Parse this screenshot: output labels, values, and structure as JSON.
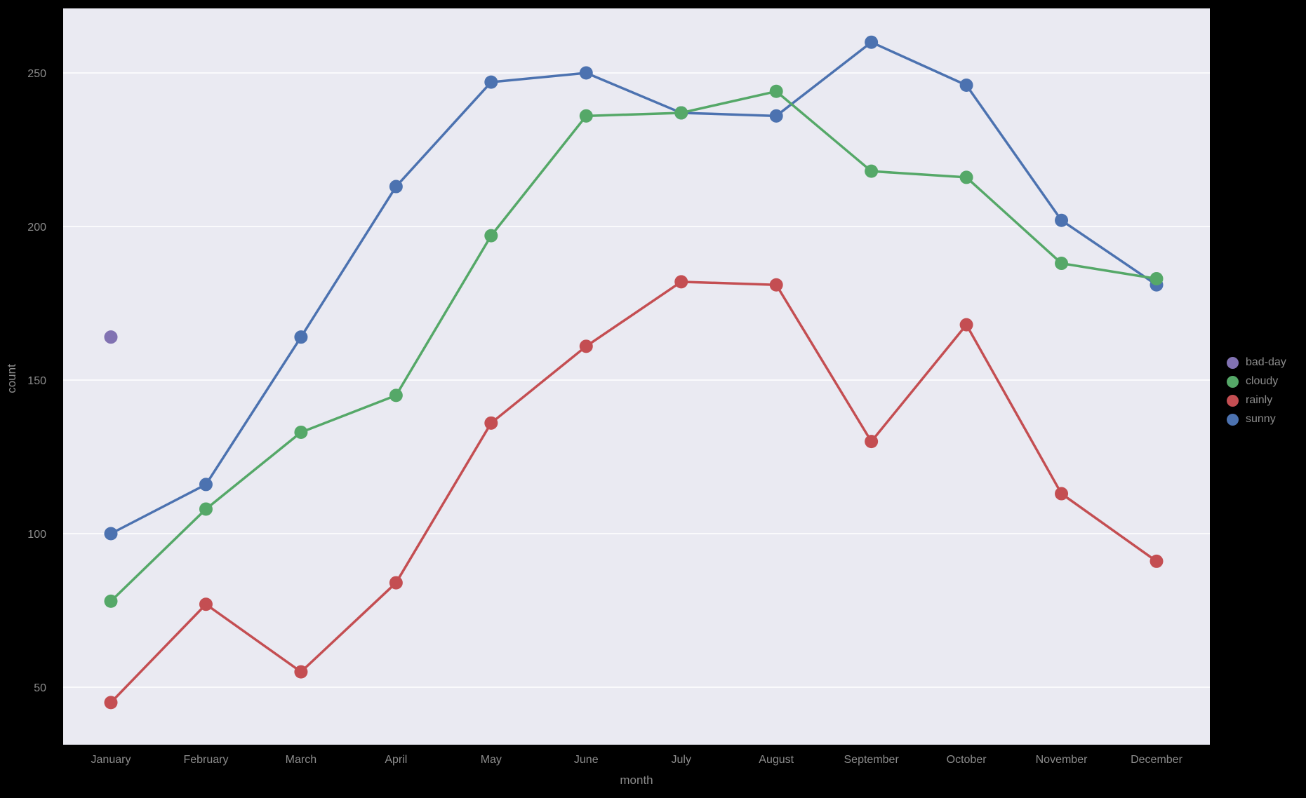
{
  "figure": {
    "background": "#000000",
    "plot_background": "#EAEAF2",
    "grid_color": "#FFFFFF",
    "text_color": "#8c8c8c"
  },
  "chart_data": {
    "type": "line",
    "title": "",
    "xlabel": "month",
    "ylabel": "count",
    "grid": "horizontal",
    "legend_position": "right-outside",
    "categories": [
      "January",
      "February",
      "March",
      "April",
      "May",
      "June",
      "July",
      "August",
      "September",
      "October",
      "November",
      "December"
    ],
    "yticks": [
      50,
      100,
      150,
      200,
      250
    ],
    "ylim": [
      30,
      272
    ],
    "series": [
      {
        "name": "sunny",
        "color": "#4C72B0",
        "values": [
          100,
          116,
          164,
          213,
          247,
          250,
          237,
          236,
          260,
          246,
          202,
          181
        ]
      },
      {
        "name": "cloudy",
        "color": "#55A868",
        "values": [
          78,
          108,
          133,
          145,
          197,
          236,
          237,
          244,
          218,
          216,
          188,
          183
        ]
      },
      {
        "name": "rainly",
        "color": "#C44E52",
        "values": [
          45,
          77,
          55,
          84,
          136,
          161,
          182,
          181,
          130,
          168,
          113,
          91
        ]
      }
    ],
    "points": [
      {
        "name": "bad-day",
        "color": "#8172B2",
        "x": "January",
        "y": 164
      }
    ],
    "legend": [
      {
        "label": "bad-day",
        "color": "#8172B2"
      },
      {
        "label": "cloudy",
        "color": "#55A868"
      },
      {
        "label": "rainly",
        "color": "#C44E52"
      },
      {
        "label": "sunny",
        "color": "#4C72B0"
      }
    ]
  }
}
